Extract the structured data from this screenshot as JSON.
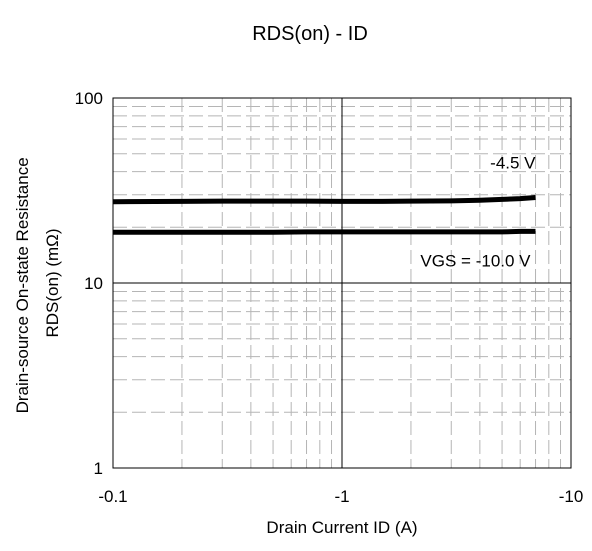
{
  "chart_data": {
    "type": "line",
    "title": "RDS(on) - ID",
    "xlabel": "Drain Current ID (A)",
    "ylabel_lines": [
      "Drain-source On-state Resistance",
      "RDS(on) (mΩ)"
    ],
    "x_scale": "log",
    "y_scale": "log",
    "xlim": [
      -0.1,
      -10
    ],
    "ylim": [
      1,
      100
    ],
    "x_ticks": [
      {
        "value": -0.1,
        "label": "-0.1"
      },
      {
        "value": -1,
        "label": "-1"
      },
      {
        "value": -10,
        "label": "-10"
      }
    ],
    "y_ticks": [
      {
        "value": 1,
        "label": "1"
      },
      {
        "value": 10,
        "label": "10"
      },
      {
        "value": 100,
        "label": "100"
      }
    ],
    "grid": true,
    "series": [
      {
        "name": "-4.5 V",
        "color": "#000000",
        "x": [
          -0.1,
          -0.2,
          -0.3,
          -0.5,
          -0.7,
          -1,
          -1.5,
          -2,
          -3,
          -4,
          -5,
          -6,
          -7
        ],
        "y": [
          27.5,
          27.6,
          27.7,
          27.7,
          27.7,
          27.6,
          27.6,
          27.7,
          27.8,
          28.0,
          28.3,
          28.6,
          29.0
        ]
      },
      {
        "name": "VGS = -10.0 V",
        "color": "#000000",
        "x": [
          -0.1,
          -0.2,
          -0.3,
          -0.5,
          -0.7,
          -1,
          -1.5,
          -2,
          -3,
          -4,
          -5,
          -6,
          -7
        ],
        "y": [
          18.8,
          18.8,
          18.8,
          18.8,
          18.9,
          18.9,
          18.9,
          18.9,
          18.9,
          18.9,
          18.9,
          19.0,
          19.0
        ]
      }
    ],
    "annotations": [
      {
        "text": "-4.5 V",
        "series": 0
      },
      {
        "text": "VGS = -10.0 V",
        "series": 1
      }
    ]
  }
}
